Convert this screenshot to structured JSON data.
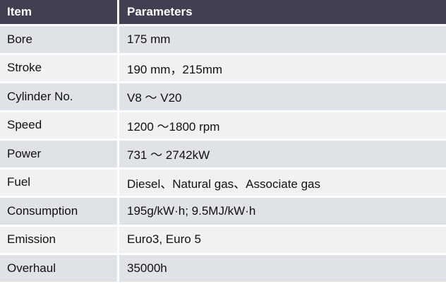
{
  "table": {
    "headers": [
      "Item",
      "Parameters"
    ],
    "rows": [
      [
        "Bore",
        "175 mm"
      ],
      [
        "Stroke",
        "190 mm，215mm"
      ],
      [
        "Cylinder No.",
        "V8 ～ V20"
      ],
      [
        "Speed",
        "1200 ～1800 rpm"
      ],
      [
        "Power",
        "731 ～ 2742kW"
      ],
      [
        "Fuel",
        "Diesel、Natural gas、Associate gas"
      ],
      [
        "Consumption",
        "195g/kW·h; 9.5MJ/kW·h"
      ],
      [
        "Emission",
        "Euro3, Euro 5"
      ],
      [
        "Overhaul",
        "35000h"
      ]
    ]
  },
  "colors": {
    "header_bg": "#404052",
    "row_odd": "#dfe2e6",
    "row_even": "#eff1f3"
  }
}
